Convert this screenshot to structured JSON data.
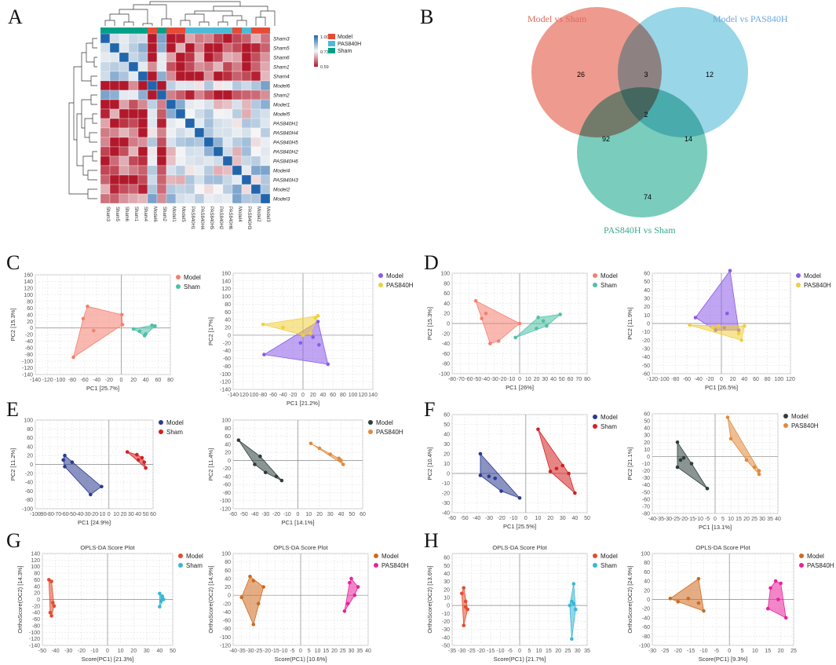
{
  "panel_letters": [
    "A",
    "B",
    "C",
    "D",
    "E",
    "F",
    "G",
    "H"
  ],
  "heatmap": {
    "labels": [
      "Sham3",
      "Sham5",
      "Sham6",
      "Sham1",
      "Sham4",
      "Model6",
      "Sham2",
      "Model1",
      "Model5",
      "PAS840H1",
      "PAS840H4",
      "PAS840H5",
      "PAS840H2",
      "PAS840H6",
      "Model4",
      "PAS840H3",
      "Model2",
      "Model3"
    ],
    "groups": [
      "Sham",
      "Sham",
      "Sham",
      "Sham",
      "Sham",
      "Model",
      "Sham",
      "Model",
      "Model",
      "PAS840H",
      "PAS840H",
      "PAS840H",
      "PAS840H",
      "PAS840H",
      "Model",
      "PAS840H",
      "Model",
      "Model"
    ],
    "colorbar_ticks": [
      "1.00",
      "0.73",
      "0.59"
    ],
    "legend": [
      "Model",
      "PAS840H",
      "Sham"
    ],
    "group_colors": {
      "Model": "#e64b35",
      "PAS840H": "#4dbbd5",
      "Sham": "#00a087"
    }
  },
  "venn": {
    "sets": [
      {
        "label": "Model vs Sham",
        "color": "#e8786a"
      },
      {
        "label": "Model vs PAS840H",
        "color": "#76c8e0"
      },
      {
        "label": "PAS840H vs Sham",
        "color": "#4dbba5"
      }
    ],
    "counts": [
      "26",
      "3",
      "12",
      "2",
      "92",
      "14",
      "74"
    ]
  },
  "chart_data": [
    {
      "id": "C1",
      "type": "scatter",
      "xlabel": "PC1 [25.7%]",
      "ylabel": "PC2 [15.3%]",
      "xlim": [
        -140,
        80
      ],
      "ylim": [
        -140,
        160
      ],
      "legend": [
        "Model",
        "Sham"
      ],
      "colors": [
        "#f4806f",
        "#4dc1a5"
      ],
      "series": [
        {
          "name": "Model",
          "points": [
            [
              -78,
              -88
            ],
            [
              -55,
              65
            ],
            [
              -62,
              28
            ],
            [
              -45,
              -8
            ],
            [
              1,
              40
            ],
            [
              2,
              10
            ]
          ]
        },
        {
          "name": "Sham",
          "points": [
            [
              20,
              -3
            ],
            [
              50,
              8
            ],
            [
              55,
              6
            ],
            [
              40,
              -18
            ],
            [
              38,
              -23
            ],
            [
              30,
              -10
            ]
          ]
        }
      ]
    },
    {
      "id": "C2",
      "type": "scatter",
      "xlabel": "PC1 [21.2%]",
      "ylabel": "PC2 [17%]",
      "xlim": [
        -140,
        140
      ],
      "ylim": [
        -140,
        160
      ],
      "legend": [
        "Model",
        "PAS840H"
      ],
      "colors": [
        "#8a5be8",
        "#f0cf3c"
      ],
      "series": [
        {
          "name": "Model",
          "points": [
            [
              -78,
              -50
            ],
            [
              -5,
              -20
            ],
            [
              20,
              -5
            ],
            [
              32,
              -25
            ],
            [
              50,
              -75
            ],
            [
              30,
              35
            ]
          ]
        },
        {
          "name": "PAS840H",
          "points": [
            [
              -80,
              28
            ],
            [
              -40,
              20
            ],
            [
              25,
              45
            ],
            [
              30,
              50
            ],
            [
              15,
              5
            ],
            [
              0,
              0
            ]
          ]
        }
      ]
    },
    {
      "id": "D1",
      "type": "scatter",
      "xlabel": "PC1 [26%]",
      "ylabel": "PC2 [15.3%]",
      "xlim": [
        -80,
        80
      ],
      "ylim": [
        -100,
        100
      ],
      "legend": [
        "Model",
        "Sham"
      ],
      "colors": [
        "#f4806f",
        "#4dc1a5"
      ],
      "series": [
        {
          "name": "Model",
          "points": [
            [
              -52,
              45
            ],
            [
              -40,
              20
            ],
            [
              -35,
              -40
            ],
            [
              -25,
              -35
            ],
            [
              0,
              0
            ],
            [
              -45,
              10
            ]
          ]
        },
        {
          "name": "Sham",
          "points": [
            [
              -5,
              -28
            ],
            [
              22,
              12
            ],
            [
              28,
              5
            ],
            [
              48,
              18
            ],
            [
              32,
              -5
            ],
            [
              20,
              -10
            ]
          ]
        }
      ]
    },
    {
      "id": "D2",
      "type": "scatter",
      "xlabel": "PC1 [26.5%]",
      "ylabel": "PC2 [11.9%]",
      "xlim": [
        -120,
        120
      ],
      "ylim": [
        -60,
        60
      ],
      "legend": [
        "Model",
        "PAS840H"
      ],
      "colors": [
        "#8a5be8",
        "#f0cf3c"
      ],
      "series": [
        {
          "name": "Model",
          "points": [
            [
              -45,
              7
            ],
            [
              -10,
              -8
            ],
            [
              5,
              -5
            ],
            [
              15,
              63
            ],
            [
              30,
              -8
            ],
            [
              10,
              12
            ]
          ]
        },
        {
          "name": "PAS840H",
          "points": [
            [
              -55,
              -2
            ],
            [
              -15,
              -5
            ],
            [
              -5,
              -3
            ],
            [
              35,
              -20
            ],
            [
              40,
              -3
            ],
            [
              30,
              -12
            ]
          ]
        }
      ]
    },
    {
      "id": "E1",
      "type": "scatter",
      "xlabel": "PC1 [24.9%]",
      "ylabel": "PC2 [11.2%]",
      "xlim": [
        -100,
        60
      ],
      "ylim": [
        -100,
        100
      ],
      "legend": [
        "Model",
        "Sham"
      ],
      "colors": [
        "#2a3a8f",
        "#d42020"
      ],
      "series": [
        {
          "name": "Model",
          "points": [
            [
              -60,
              20
            ],
            [
              -62,
              10
            ],
            [
              -50,
              5
            ],
            [
              -60,
              -5
            ],
            [
              -25,
              -68
            ],
            [
              -10,
              -50
            ]
          ]
        },
        {
          "name": "Sham",
          "points": [
            [
              25,
              28
            ],
            [
              38,
              22
            ],
            [
              45,
              15
            ],
            [
              48,
              5
            ],
            [
              50,
              -8
            ],
            [
              40,
              10
            ]
          ]
        }
      ]
    },
    {
      "id": "E2",
      "type": "scatter",
      "xlabel": "PC1 [14.1%]",
      "ylabel": "PC2 [11.4%]",
      "xlim": [
        -60,
        60
      ],
      "ylim": [
        -120,
        100
      ],
      "legend": [
        "Model",
        "PAS840H"
      ],
      "colors": [
        "#2c3e3c",
        "#e28a3c"
      ],
      "series": [
        {
          "name": "Model",
          "points": [
            [
              -55,
              50
            ],
            [
              -40,
              -10
            ],
            [
              -35,
              10
            ],
            [
              -30,
              -30
            ],
            [
              -20,
              -40
            ],
            [
              -15,
              -50
            ]
          ]
        },
        {
          "name": "PAS840H",
          "points": [
            [
              12,
              42
            ],
            [
              20,
              30
            ],
            [
              30,
              15
            ],
            [
              38,
              5
            ],
            [
              42,
              -10
            ],
            [
              40,
              0
            ]
          ]
        }
      ]
    },
    {
      "id": "F1",
      "type": "scatter",
      "xlabel": "PC1 [25.5%]",
      "ylabel": "PC2 [10.4%]",
      "xlim": [
        -60,
        50
      ],
      "ylim": [
        -40,
        60
      ],
      "legend": [
        "Model",
        "Sham"
      ],
      "colors": [
        "#2a3a8f",
        "#d42020"
      ],
      "series": [
        {
          "name": "Model",
          "points": [
            [
              -37,
              20
            ],
            [
              -37,
              -2
            ],
            [
              -30,
              -3
            ],
            [
              -20,
              -18
            ],
            [
              -5,
              -25
            ],
            [
              -25,
              -5
            ]
          ]
        },
        {
          "name": "Sham",
          "points": [
            [
              10,
              45
            ],
            [
              20,
              2
            ],
            [
              25,
              5
            ],
            [
              30,
              8
            ],
            [
              40,
              -20
            ],
            [
              35,
              0
            ]
          ]
        }
      ]
    },
    {
      "id": "F2",
      "type": "scatter",
      "xlabel": "PC1 [13.1%]",
      "ylabel": "PC2 [21.1%]",
      "xlim": [
        -40,
        40
      ],
      "ylim": [
        -80,
        60
      ],
      "legend": [
        "Model",
        "PAS840H"
      ],
      "colors": [
        "#2c3e3c",
        "#e28a3c"
      ],
      "series": [
        {
          "name": "Model",
          "points": [
            [
              -24,
              20
            ],
            [
              -22,
              -5
            ],
            [
              -20,
              -2
            ],
            [
              -24,
              -15
            ],
            [
              -15,
              -10
            ],
            [
              -5,
              -45
            ]
          ]
        },
        {
          "name": "PAS840H",
          "points": [
            [
              8,
              55
            ],
            [
              10,
              25
            ],
            [
              20,
              -5
            ],
            [
              28,
              -20
            ],
            [
              28,
              -25
            ],
            [
              25,
              -15
            ]
          ]
        }
      ]
    },
    {
      "id": "G1",
      "type": "scatter",
      "title": "OPLS-DA Score Plot",
      "xlabel": "Score(PC1) [21.3%]",
      "ylabel": "OrthoScore(OC2) [14.3%]",
      "xlim": [
        -50,
        50
      ],
      "ylim": [
        -140,
        140
      ],
      "legend": [
        "Model",
        "Sham"
      ],
      "colors": [
        "#e44b2e",
        "#38b7d6"
      ],
      "series": [
        {
          "name": "Model",
          "points": [
            [
              -45,
              60
            ],
            [
              -43,
              55
            ],
            [
              -42,
              -10
            ],
            [
              -44,
              -40
            ],
            [
              -43,
              -50
            ],
            [
              -41,
              -20
            ]
          ]
        },
        {
          "name": "Sham",
          "points": [
            [
              40,
              18
            ],
            [
              42,
              10
            ],
            [
              41,
              -5
            ],
            [
              40,
              -22
            ],
            [
              43,
              0
            ],
            [
              42,
              5
            ]
          ]
        }
      ]
    },
    {
      "id": "G2",
      "type": "scatter",
      "title": "OPLS-DA Score Plot",
      "xlabel": "Score(PC1) [10.6%]",
      "ylabel": "OrthoScore(OC2) [14.9%]",
      "xlim": [
        -40,
        40
      ],
      "ylim": [
        -120,
        100
      ],
      "legend": [
        "Model",
        "PAS840H"
      ],
      "colors": [
        "#d06a1e",
        "#e7239a"
      ],
      "series": [
        {
          "name": "Model",
          "points": [
            [
              -35,
              -5
            ],
            [
              -30,
              45
            ],
            [
              -28,
              -70
            ],
            [
              -25,
              -20
            ],
            [
              -22,
              20
            ],
            [
              -28,
              35
            ]
          ]
        },
        {
          "name": "PAS840H",
          "points": [
            [
              26,
              -38
            ],
            [
              28,
              -20
            ],
            [
              30,
              40
            ],
            [
              32,
              0
            ],
            [
              34,
              20
            ],
            [
              29,
              30
            ]
          ]
        }
      ]
    },
    {
      "id": "H1",
      "type": "scatter",
      "title": "OPLS-DA Score Plot",
      "xlabel": "Score(PC1) [21.7%]",
      "ylabel": "OrthoScore(OC2) [13.6%]",
      "xlim": [
        -35,
        35
      ],
      "ylim": [
        -50,
        65
      ],
      "legend": [
        "Model",
        "Sham"
      ],
      "colors": [
        "#e44b2e",
        "#38b7d6"
      ],
      "series": [
        {
          "name": "Model",
          "points": [
            [
              -30,
              15
            ],
            [
              -29,
              22
            ],
            [
              -28,
              -2
            ],
            [
              -29,
              -25
            ],
            [
              -27,
              -5
            ],
            [
              -28,
              5
            ]
          ]
        },
        {
          "name": "Sham",
          "points": [
            [
              28,
              27
            ],
            [
              27,
              5
            ],
            [
              26,
              0
            ],
            [
              27,
              -42
            ],
            [
              29,
              -5
            ],
            [
              28,
              2
            ]
          ]
        }
      ]
    },
    {
      "id": "H2",
      "type": "scatter",
      "title": "OPLS-DA Score Plot",
      "xlabel": "Score(PC1) [9.3%]",
      "ylabel": "OrthoScore(OC2) [24.9%]",
      "xlim": [
        -30,
        25
      ],
      "ylim": [
        -100,
        100
      ],
      "legend": [
        "Model",
        "PAS840H"
      ],
      "colors": [
        "#d06a1e",
        "#e7239a"
      ],
      "series": [
        {
          "name": "Model",
          "points": [
            [
              -23,
              2
            ],
            [
              -20,
              -5
            ],
            [
              -16,
              2
            ],
            [
              -12,
              -8
            ],
            [
              -10,
              -25
            ],
            [
              -12,
              45
            ]
          ]
        },
        {
          "name": "PAS840H",
          "points": [
            [
              15,
              -20
            ],
            [
              16,
              25
            ],
            [
              18,
              40
            ],
            [
              20,
              35
            ],
            [
              22,
              -40
            ],
            [
              19,
              0
            ]
          ]
        }
      ]
    }
  ]
}
